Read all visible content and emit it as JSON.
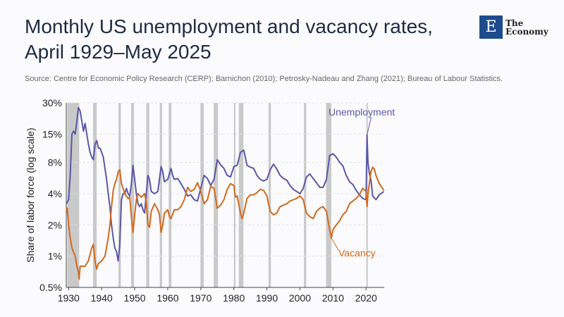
{
  "header": {
    "title_line1": "Monthly US unemployment and vacancy rates,",
    "title_line2": "April 1929–May 2025",
    "source": "Source: Centre for Economic Policy Research (CERP); Barnichon (2010); Petrosky-Nadeau and Zhang (2021); Bureau of Labour Statistics."
  },
  "logo": {
    "letter": "E",
    "line1": "The",
    "line2": "Economy",
    "color": "#1e4b8c"
  },
  "chart_data": {
    "type": "line",
    "title": "Monthly US unemployment and vacancy rates, April 1929–May 2025",
    "xlabel": "",
    "ylabel": "Share of labor force (log scale)",
    "xlim": [
      1929.3,
      2025.5
    ],
    "ylim": [
      0.5,
      30
    ],
    "yscale": "log",
    "x_ticks": [
      "1930",
      "1940",
      "1950",
      "1960",
      "1970",
      "1980",
      "1990",
      "2000",
      "2010",
      "2020"
    ],
    "y_ticks": [
      {
        "value": 30,
        "label": "30%"
      },
      {
        "value": 15,
        "label": "15%"
      },
      {
        "value": 8,
        "label": "8%"
      },
      {
        "value": 4,
        "label": "4%"
      },
      {
        "value": 2,
        "label": "2%"
      },
      {
        "value": 1,
        "label": "1%"
      },
      {
        "value": 0.5,
        "label": "0.5%"
      }
    ],
    "grid": true,
    "recessions": [
      [
        1929.6,
        1933.2
      ],
      [
        1937.4,
        1938.5
      ],
      [
        1945.1,
        1945.8
      ],
      [
        1948.9,
        1949.8
      ],
      [
        1953.5,
        1954.4
      ],
      [
        1957.6,
        1958.3
      ],
      [
        1960.3,
        1961.1
      ],
      [
        1969.9,
        1970.9
      ],
      [
        1973.9,
        1975.2
      ],
      [
        1980.0,
        1980.5
      ],
      [
        1981.5,
        1982.9
      ],
      [
        1990.5,
        1991.2
      ],
      [
        2001.2,
        2001.9
      ],
      [
        2007.9,
        2009.5
      ],
      [
        2020.1,
        2020.3
      ]
    ],
    "series": [
      {
        "name": "Unemployment",
        "color": "#5b57a6",
        "points": [
          [
            1929.3,
            3.2
          ],
          [
            1930,
            3.5
          ],
          [
            1930.5,
            6
          ],
          [
            1931,
            15
          ],
          [
            1931.5,
            16
          ],
          [
            1932,
            15
          ],
          [
            1932.5,
            20
          ],
          [
            1933,
            27
          ],
          [
            1933.5,
            25
          ],
          [
            1934,
            20
          ],
          [
            1934.5,
            16
          ],
          [
            1935,
            19
          ],
          [
            1935.5,
            15
          ],
          [
            1936,
            12
          ],
          [
            1936.5,
            10
          ],
          [
            1937,
            9
          ],
          [
            1937.5,
            8.5
          ],
          [
            1938,
            12
          ],
          [
            1938.5,
            13
          ],
          [
            1939,
            11
          ],
          [
            1939.5,
            11
          ],
          [
            1940,
            10
          ],
          [
            1940.5,
            9
          ],
          [
            1941,
            7
          ],
          [
            1941.5,
            5.5
          ],
          [
            1942,
            4
          ],
          [
            1942.5,
            3
          ],
          [
            1943,
            2
          ],
          [
            1943.5,
            1.5
          ],
          [
            1944,
            1.2
          ],
          [
            1944.5,
            1.1
          ],
          [
            1945,
            0.9
          ],
          [
            1945.5,
            1.3
          ],
          [
            1946,
            3.5
          ],
          [
            1946.5,
            4
          ],
          [
            1947,
            4
          ],
          [
            1947.5,
            4.5
          ],
          [
            1948,
            4
          ],
          [
            1948.5,
            3.8
          ],
          [
            1949,
            5
          ],
          [
            1949.5,
            7.5
          ],
          [
            1950,
            5.5
          ],
          [
            1950.5,
            4
          ],
          [
            1951,
            3.2
          ],
          [
            1951.5,
            3
          ],
          [
            1952,
            3.2
          ],
          [
            1952.5,
            2.8
          ],
          [
            1953,
            2.6
          ],
          [
            1953.5,
            4
          ],
          [
            1954,
            6
          ],
          [
            1954.5,
            5.5
          ],
          [
            1955,
            4.2
          ],
          [
            1956,
            4
          ],
          [
            1957,
            4.2
          ],
          [
            1958,
            7.3
          ],
          [
            1958.5,
            6.5
          ],
          [
            1959,
            5.2
          ],
          [
            1960,
            5.5
          ],
          [
            1961,
            7
          ],
          [
            1961.5,
            6
          ],
          [
            1962,
            5.5
          ],
          [
            1963,
            5.6
          ],
          [
            1964,
            5
          ],
          [
            1965,
            4.4
          ],
          [
            1966,
            3.8
          ],
          [
            1967,
            3.9
          ],
          [
            1968,
            3.5
          ],
          [
            1969,
            3.4
          ],
          [
            1970,
            4.5
          ],
          [
            1971,
            6
          ],
          [
            1972,
            5.6
          ],
          [
            1973,
            4.8
          ],
          [
            1974,
            5.5
          ],
          [
            1975,
            8.5
          ],
          [
            1976,
            7.6
          ],
          [
            1977,
            7
          ],
          [
            1978,
            6
          ],
          [
            1979,
            5.8
          ],
          [
            1980,
            7.3
          ],
          [
            1981,
            7.5
          ],
          [
            1982,
            10
          ],
          [
            1983,
            10.5
          ],
          [
            1984,
            7.5
          ],
          [
            1985,
            7.2
          ],
          [
            1986,
            7
          ],
          [
            1987,
            6
          ],
          [
            1988,
            5.5
          ],
          [
            1989,
            5.3
          ],
          [
            1990,
            5.5
          ],
          [
            1991,
            6.8
          ],
          [
            1992,
            7.7
          ],
          [
            1993,
            6.9
          ],
          [
            1994,
            6
          ],
          [
            1995,
            5.6
          ],
          [
            1996,
            5.4
          ],
          [
            1997,
            4.8
          ],
          [
            1998,
            4.4
          ],
          [
            1999,
            4.2
          ],
          [
            2000,
            4
          ],
          [
            2001,
            4.5
          ],
          [
            2002,
            5.8
          ],
          [
            2003,
            6.2
          ],
          [
            2004,
            5.6
          ],
          [
            2005,
            5.1
          ],
          [
            2006,
            4.6
          ],
          [
            2007,
            4.6
          ],
          [
            2008,
            5.5
          ],
          [
            2009,
            9.3
          ],
          [
            2010,
            9.7
          ],
          [
            2011,
            9
          ],
          [
            2012,
            8
          ],
          [
            2013,
            7.4
          ],
          [
            2014,
            6
          ],
          [
            2015,
            5.2
          ],
          [
            2016,
            4.9
          ],
          [
            2017,
            4.3
          ],
          [
            2018,
            3.9
          ],
          [
            2019,
            3.6
          ],
          [
            2020,
            3.5
          ],
          [
            2020.3,
            14.7
          ],
          [
            2020.6,
            8
          ],
          [
            2021,
            6.3
          ],
          [
            2021.5,
            5.4
          ],
          [
            2022,
            3.8
          ],
          [
            2023,
            3.5
          ],
          [
            2024,
            3.9
          ],
          [
            2025.4,
            4.2
          ]
        ]
      },
      {
        "name": "Vacancy",
        "color": "#d2691e",
        "points": [
          [
            1929.3,
            2.7
          ],
          [
            1929.6,
            2.9
          ],
          [
            1930,
            2
          ],
          [
            1930.5,
            1.5
          ],
          [
            1931,
            1.2
          ],
          [
            1932,
            1
          ],
          [
            1932.5,
            0.8
          ],
          [
            1933,
            0.7
          ],
          [
            1933.2,
            0.6
          ],
          [
            1933.5,
            0.8
          ],
          [
            1934,
            0.8
          ],
          [
            1935,
            0.8
          ],
          [
            1936,
            0.9
          ],
          [
            1937,
            1.2
          ],
          [
            1937.5,
            1.3
          ],
          [
            1938,
            0.9
          ],
          [
            1938.5,
            0.75
          ],
          [
            1939,
            0.85
          ],
          [
            1940,
            0.9
          ],
          [
            1941,
            1
          ],
          [
            1942,
            1.5
          ],
          [
            1942.5,
            2
          ],
          [
            1943,
            3
          ],
          [
            1943.5,
            4.3
          ],
          [
            1944,
            5
          ],
          [
            1944.5,
            5.5
          ],
          [
            1945,
            6.5
          ],
          [
            1945.5,
            6.8
          ],
          [
            1946,
            5
          ],
          [
            1946.5,
            4.5
          ],
          [
            1947,
            4
          ],
          [
            1948,
            3.6
          ],
          [
            1948.5,
            3.7
          ],
          [
            1949,
            2.4
          ],
          [
            1949.5,
            1.7
          ],
          [
            1950,
            2.5
          ],
          [
            1950.5,
            3.5
          ],
          [
            1951,
            4
          ],
          [
            1952,
            3.7
          ],
          [
            1953,
            4
          ],
          [
            1953.5,
            3.3
          ],
          [
            1954,
            2
          ],
          [
            1954.5,
            1.9
          ],
          [
            1955,
            2.7
          ],
          [
            1956,
            3.2
          ],
          [
            1957,
            2.8
          ],
          [
            1957.5,
            2.5
          ],
          [
            1958,
            1.7
          ],
          [
            1958.5,
            2
          ],
          [
            1959,
            2.6
          ],
          [
            1960,
            2.8
          ],
          [
            1960.5,
            2.4
          ],
          [
            1961,
            2.3
          ],
          [
            1962,
            2.8
          ],
          [
            1963,
            2.8
          ],
          [
            1964,
            3
          ],
          [
            1965,
            3.5
          ],
          [
            1966,
            4.6
          ],
          [
            1967,
            4.2
          ],
          [
            1968,
            4.4
          ],
          [
            1969,
            5.1
          ],
          [
            1970,
            4.2
          ],
          [
            1971,
            3.2
          ],
          [
            1972,
            3.5
          ],
          [
            1973,
            4.7
          ],
          [
            1974,
            4.5
          ],
          [
            1975,
            2.9
          ],
          [
            1976,
            3.1
          ],
          [
            1977,
            3.5
          ],
          [
            1978,
            4.4
          ],
          [
            1979,
            5
          ],
          [
            1980,
            4.8
          ],
          [
            1980.5,
            3.7
          ],
          [
            1981,
            3.8
          ],
          [
            1982,
            2.6
          ],
          [
            1982.5,
            2.3
          ],
          [
            1983,
            2.6
          ],
          [
            1984,
            3.6
          ],
          [
            1985,
            3.9
          ],
          [
            1986,
            3.9
          ],
          [
            1987,
            4.1
          ],
          [
            1988,
            4.4
          ],
          [
            1989,
            4.3
          ],
          [
            1990,
            3.8
          ],
          [
            1991,
            2.7
          ],
          [
            1992,
            2.5
          ],
          [
            1993,
            2.6
          ],
          [
            1994,
            3
          ],
          [
            1995,
            3.1
          ],
          [
            1996,
            3.2
          ],
          [
            1997,
            3.4
          ],
          [
            1998,
            3.5
          ],
          [
            1999,
            3.6
          ],
          [
            2000,
            3.8
          ],
          [
            2001,
            3.5
          ],
          [
            2002,
            2.6
          ],
          [
            2003,
            2.4
          ],
          [
            2004,
            2.3
          ],
          [
            2005,
            2.7
          ],
          [
            2006,
            2.9
          ],
          [
            2007,
            3
          ],
          [
            2008,
            2.7
          ],
          [
            2009,
            1.8
          ],
          [
            2009.5,
            1.5
          ],
          [
            2010,
            1.8
          ],
          [
            2011,
            2
          ],
          [
            2012,
            2.2
          ],
          [
            2013,
            2.5
          ],
          [
            2014,
            2.7
          ],
          [
            2015,
            3.2
          ],
          [
            2016,
            3.4
          ],
          [
            2017,
            3.6
          ],
          [
            2018,
            3.9
          ],
          [
            2019,
            4.5
          ],
          [
            2020,
            4.2
          ],
          [
            2020.3,
            3
          ],
          [
            2020.6,
            4
          ],
          [
            2021,
            5
          ],
          [
            2021.5,
            6.5
          ],
          [
            2022,
            7.2
          ],
          [
            2022.5,
            6.9
          ],
          [
            2023,
            6
          ],
          [
            2024,
            5
          ],
          [
            2025,
            4.5
          ],
          [
            2025.4,
            4.3
          ]
        ]
      }
    ],
    "annotations": [
      {
        "text": "Unemployment",
        "series": "Unemployment",
        "points_to": [
          2020.3,
          14.7
        ]
      },
      {
        "text": "Vacancy",
        "series": "Vacancy",
        "points_to": [
          2009.5,
          1.5
        ]
      }
    ]
  }
}
